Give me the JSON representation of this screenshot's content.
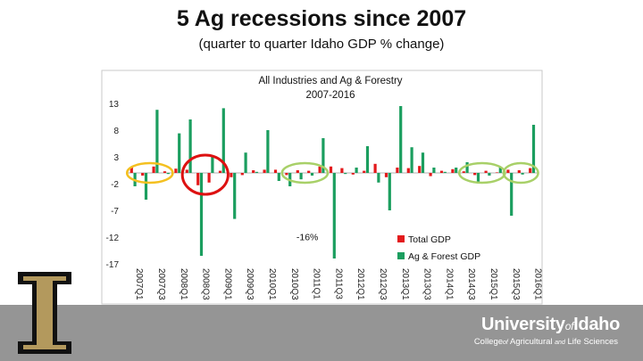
{
  "slide": {
    "title": "5 Ag recessions since 2007",
    "subtitle": "(quarter to quarter Idaho GDP % change)"
  },
  "chart_data": {
    "type": "bar",
    "title": "All Industries and Ag & Forestry",
    "subtitle": "2007-2016",
    "ylim": [
      -17,
      13
    ],
    "y_ticks": [
      "13",
      "8",
      "3",
      "-2",
      "-7",
      "-12",
      "-17"
    ],
    "x_tick_labels": [
      "2007Q1",
      "2007Q3",
      "2008Q1",
      "2008Q3",
      "2009Q1",
      "2009Q3",
      "2010Q1",
      "2010Q3",
      "2011Q1",
      "2011Q3",
      "2012Q1",
      "2012Q3",
      "2013Q1",
      "2013Q3",
      "2014Q1",
      "2014Q3",
      "2015Q1",
      "2015Q3",
      "2016Q1"
    ],
    "categories": [
      "2007Q1",
      "2007Q2",
      "2007Q3",
      "2007Q4",
      "2008Q1",
      "2008Q2",
      "2008Q3",
      "2008Q4",
      "2009Q1",
      "2009Q2",
      "2009Q3",
      "2009Q4",
      "2010Q1",
      "2010Q2",
      "2010Q3",
      "2010Q4",
      "2011Q1",
      "2011Q2",
      "2011Q3",
      "2011Q4",
      "2012Q1",
      "2012Q2",
      "2012Q3",
      "2012Q4",
      "2013Q1",
      "2013Q2",
      "2013Q3",
      "2013Q4",
      "2014Q1",
      "2014Q2",
      "2014Q3",
      "2014Q4",
      "2015Q1",
      "2015Q2",
      "2015Q3",
      "2015Q4",
      "2016Q1"
    ],
    "series": [
      {
        "name": "Total GDP",
        "color": "#e31a1c",
        "values": [
          1.0,
          -0.5,
          1.2,
          0.3,
          0.8,
          0.6,
          -2.3,
          -1.8,
          0.4,
          -0.8,
          -0.4,
          0.5,
          0.6,
          0.6,
          -0.4,
          0.5,
          0.4,
          1.2,
          1.2,
          0.9,
          -0.3,
          0.4,
          1.7,
          -0.8,
          1.0,
          0.9,
          1.3,
          -0.6,
          0.4,
          0.7,
          0.3,
          -0.4,
          0.4,
          0.1,
          0.6,
          0.5,
          0.9
        ]
      },
      {
        "name": "Ag & Forest GDP",
        "color": "#1b9e5f",
        "values": [
          -2.5,
          -5.0,
          11.8,
          -0.2,
          7.4,
          10.0,
          -15.5,
          3.3,
          12.1,
          -8.6,
          3.8,
          0.2,
          8.0,
          -1.5,
          -2.5,
          -1.2,
          -0.5,
          6.5,
          -16.0,
          -0.2,
          1.0,
          5.0,
          -1.8,
          -7.0,
          12.5,
          4.8,
          3.8,
          1.0,
          0.2,
          1.0,
          2.0,
          -2.0,
          -0.5,
          1.0,
          -8.0,
          -0.3,
          9.0
        ]
      }
    ],
    "annotation": "-16%",
    "legend": [
      "Total GDP",
      "Ag & Forest GDP"
    ],
    "legend_position": "bottom-right",
    "highlight_circles": [
      {
        "color": "#f4c020",
        "start": "2007Q1",
        "end": "2007Q4"
      },
      {
        "color": "#dd1111",
        "start": "2008Q2",
        "end": "2009Q1"
      },
      {
        "color": "#a8d068",
        "start": "2010Q3",
        "end": "2011Q2"
      },
      {
        "color": "#a8d068",
        "start": "2014Q3",
        "end": "2015Q2"
      },
      {
        "color": "#a8d068",
        "start": "2015Q3",
        "end": "2016Q1"
      }
    ]
  },
  "footer": {
    "logo_letter": "I",
    "university_main": "University",
    "university_of": "of",
    "university_idaho": "Idaho",
    "college_a": "College",
    "college_of": "of",
    "college_b": " Agricultural ",
    "college_and": "and",
    "college_c": " Life Sciences"
  }
}
